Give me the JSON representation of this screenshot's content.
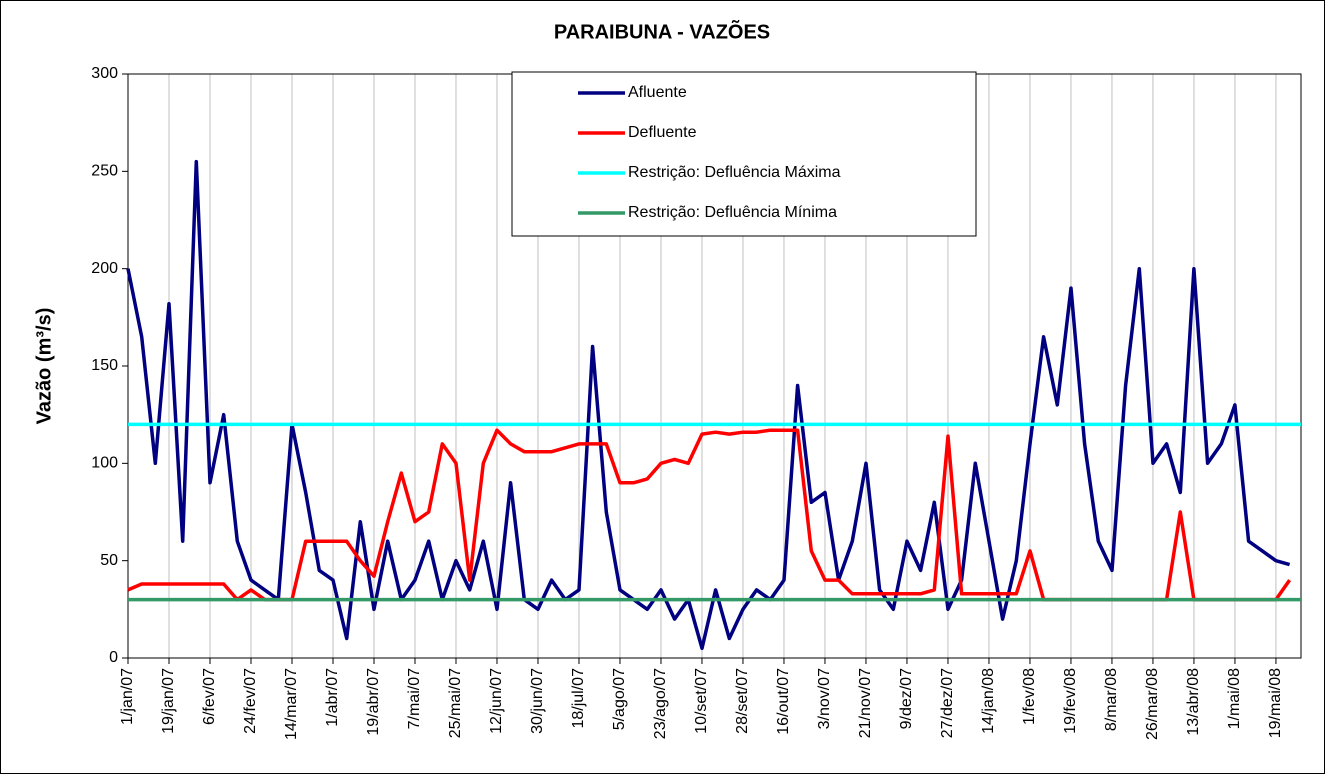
{
  "chart_data": {
    "type": "line",
    "title": "PARAIBUNA - VAZÕES",
    "y_label": "Vazão (m³/s)",
    "x": [
      "2007-01-01",
      "2007-01-07",
      "2007-01-13",
      "2007-01-19",
      "2007-01-25",
      "2007-01-31",
      "2007-02-06",
      "2007-02-12",
      "2007-02-18",
      "2007-02-24",
      "2007-03-02",
      "2007-03-08",
      "2007-03-14",
      "2007-03-20",
      "2007-03-26",
      "2007-04-01",
      "2007-04-07",
      "2007-04-13",
      "2007-04-19",
      "2007-04-25",
      "2007-05-01",
      "2007-05-07",
      "2007-05-13",
      "2007-05-19",
      "2007-05-25",
      "2007-05-31",
      "2007-06-06",
      "2007-06-12",
      "2007-06-18",
      "2007-06-24",
      "2007-06-30",
      "2007-07-06",
      "2007-07-12",
      "2007-07-18",
      "2007-07-24",
      "2007-07-30",
      "2007-08-05",
      "2007-08-11",
      "2007-08-17",
      "2007-08-23",
      "2007-08-29",
      "2007-09-04",
      "2007-09-10",
      "2007-09-16",
      "2007-09-22",
      "2007-09-28",
      "2007-10-04",
      "2007-10-10",
      "2007-10-16",
      "2007-10-22",
      "2007-10-28",
      "2007-11-03",
      "2007-11-09",
      "2007-11-15",
      "2007-11-21",
      "2007-11-27",
      "2007-12-03",
      "2007-12-09",
      "2007-12-15",
      "2007-12-21",
      "2007-12-27",
      "2008-01-02",
      "2008-01-08",
      "2008-01-14",
      "2008-01-20",
      "2008-01-26",
      "2008-02-01",
      "2008-02-07",
      "2008-02-13",
      "2008-02-19",
      "2008-02-25",
      "2008-03-02",
      "2008-03-08",
      "2008-03-14",
      "2008-03-20",
      "2008-03-26",
      "2008-04-01",
      "2008-04-07",
      "2008-04-13",
      "2008-04-19",
      "2008-04-25",
      "2008-05-01",
      "2008-05-07",
      "2008-05-13",
      "2008-05-19",
      "2008-05-25"
    ],
    "series": [
      {
        "name": "Afluente",
        "color": "#000080",
        "values": [
          200,
          165,
          100,
          182,
          60,
          255,
          90,
          125,
          60,
          40,
          35,
          30,
          120,
          85,
          45,
          40,
          10,
          70,
          25,
          60,
          30,
          40,
          60,
          30,
          50,
          35,
          60,
          25,
          90,
          30,
          25,
          40,
          30,
          35,
          160,
          75,
          35,
          30,
          25,
          35,
          20,
          30,
          5,
          35,
          10,
          25,
          35,
          30,
          40,
          140,
          80,
          85,
          40,
          60,
          100,
          35,
          25,
          60,
          45,
          80,
          25,
          40,
          100,
          60,
          20,
          50,
          110,
          165,
          130,
          190,
          110,
          60,
          45,
          140,
          200,
          100,
          110,
          85,
          200,
          100,
          110,
          130,
          60,
          55,
          50,
          48
        ]
      },
      {
        "name": "Defluente",
        "color": "#ff0000",
        "values": [
          35,
          38,
          38,
          38,
          38,
          38,
          38,
          38,
          30,
          35,
          30,
          30,
          30,
          60,
          60,
          60,
          60,
          50,
          42,
          70,
          95,
          70,
          75,
          110,
          100,
          40,
          100,
          117,
          110,
          106,
          106,
          106,
          108,
          110,
          110,
          110,
          90,
          90,
          92,
          100,
          102,
          100,
          115,
          116,
          115,
          116,
          116,
          117,
          117,
          117,
          55,
          40,
          40,
          33,
          33,
          33,
          33,
          33,
          33,
          35,
          114,
          33,
          33,
          33,
          33,
          33,
          55,
          30,
          30,
          30,
          30,
          30,
          30,
          30,
          30,
          30,
          30,
          75,
          30,
          30,
          30,
          30,
          30,
          30,
          30,
          40
        ]
      }
    ],
    "reference_lines": [
      {
        "name": "Restrição: Defluência Máxima",
        "color": "#00ffff",
        "value": 120
      },
      {
        "name": "Restrição: Defluência Mínima",
        "color": "#339966",
        "value": 30
      }
    ],
    "xlim": [
      "2007-01-01",
      "2008-05-30"
    ],
    "xticks": [
      {
        "value": "2007-01-01",
        "label": "1/jan/07"
      },
      {
        "value": "2007-01-19",
        "label": "19/jan/07"
      },
      {
        "value": "2007-02-06",
        "label": "6/fev/07"
      },
      {
        "value": "2007-02-24",
        "label": "24/fev/07"
      },
      {
        "value": "2007-03-14",
        "label": "14/mar/07"
      },
      {
        "value": "2007-04-01",
        "label": "1/abr/07"
      },
      {
        "value": "2007-04-19",
        "label": "19/abr/07"
      },
      {
        "value": "2007-05-07",
        "label": "7/mai/07"
      },
      {
        "value": "2007-05-25",
        "label": "25/mai/07"
      },
      {
        "value": "2007-06-12",
        "label": "12/jun/07"
      },
      {
        "value": "2007-06-30",
        "label": "30/jun/07"
      },
      {
        "value": "2007-07-18",
        "label": "18/jul/07"
      },
      {
        "value": "2007-08-05",
        "label": "5/ago/07"
      },
      {
        "value": "2007-08-23",
        "label": "23/ago/07"
      },
      {
        "value": "2007-09-10",
        "label": "10/set/07"
      },
      {
        "value": "2007-09-28",
        "label": "28/set/07"
      },
      {
        "value": "2007-10-16",
        "label": "16/out/07"
      },
      {
        "value": "2007-11-03",
        "label": "3/nov/07"
      },
      {
        "value": "2007-11-21",
        "label": "21/nov/07"
      },
      {
        "value": "2007-12-09",
        "label": "9/dez/07"
      },
      {
        "value": "2007-12-27",
        "label": "27/dez/07"
      },
      {
        "value": "2008-01-14",
        "label": "14/jan/08"
      },
      {
        "value": "2008-02-01",
        "label": "1/fev/08"
      },
      {
        "value": "2008-02-19",
        "label": "19/fev/08"
      },
      {
        "value": "2008-03-08",
        "label": "8/mar/08"
      },
      {
        "value": "2008-03-26",
        "label": "26/mar/08"
      },
      {
        "value": "2008-04-13",
        "label": "13/abr/08"
      },
      {
        "value": "2008-05-01",
        "label": "1/mai/08"
      },
      {
        "value": "2008-05-19",
        "label": "19/mai/08"
      }
    ],
    "ylim": [
      0,
      300
    ],
    "yticks": [
      0,
      50,
      100,
      150,
      200,
      250,
      300
    ],
    "grid": "x",
    "legend": "top"
  }
}
